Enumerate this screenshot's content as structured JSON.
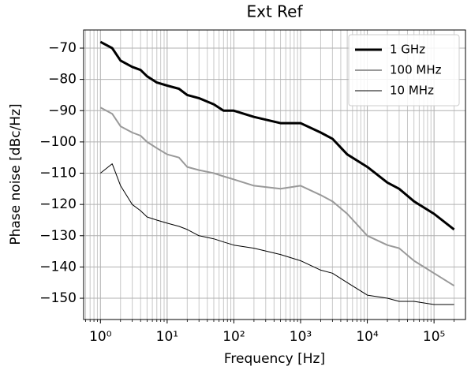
{
  "chart_data": {
    "type": "line",
    "title": "Ext Ref",
    "x_label": "Frequency [Hz]",
    "y_label": "Phase noise [dBc/Hz]",
    "x_scale": "log",
    "grid": true,
    "legend_position": "upper right",
    "x": [
      1,
      1.5,
      2,
      3,
      4,
      5,
      7,
      10,
      15,
      20,
      30,
      50,
      70,
      100,
      200,
      500,
      1000,
      2000,
      3000,
      5000,
      10000,
      20000,
      30000,
      50000,
      100000,
      200000
    ],
    "series": [
      {
        "name": "1 GHz",
        "color": "#000000",
        "linewidth": 3,
        "values": [
          -68,
          -70,
          -74,
          -76,
          -77,
          -79,
          -81,
          -82,
          -83,
          -85,
          -86,
          -88,
          -90,
          -90,
          -92,
          -94,
          -94,
          -97,
          -99,
          -104,
          -108,
          -113,
          -115,
          -119,
          -123,
          -128
        ]
      },
      {
        "name": "100 MHz",
        "color": "#999999",
        "linewidth": 2,
        "values": [
          -89,
          -91,
          -95,
          -97,
          -98,
          -100,
          -102,
          -104,
          -105,
          -108,
          -109,
          -110,
          -111,
          -112,
          -114,
          -115,
          -114,
          -117,
          -119,
          -123,
          -130,
          -133,
          -134,
          -138,
          -142,
          -146
        ]
      },
      {
        "name": "10 MHz",
        "color": "#000000",
        "linewidth": 1,
        "values": [
          -110,
          -107,
          -114,
          -120,
          -122,
          -124,
          -125,
          -126,
          -127,
          -128,
          -130,
          -131,
          -132,
          -133,
          -134,
          -136,
          -138,
          -141,
          -142,
          -145,
          -149,
          -150,
          -151,
          -151,
          -152,
          -152
        ]
      }
    ],
    "xlim": [
      0.56,
      296000
    ],
    "ylim": [
      -156.8,
      -64.2
    ],
    "xticks": [
      {
        "value": 1,
        "label": "10⁰"
      },
      {
        "value": 10,
        "label": "10¹"
      },
      {
        "value": 100,
        "label": "10²"
      },
      {
        "value": 1000,
        "label": "10³"
      },
      {
        "value": 10000,
        "label": "10⁴"
      },
      {
        "value": 100000,
        "label": "10⁵"
      }
    ],
    "xminor_ticks": [
      0.6,
      0.7,
      0.8,
      0.9,
      2,
      3,
      4,
      5,
      6,
      7,
      8,
      9,
      20,
      30,
      40,
      50,
      60,
      70,
      80,
      90,
      200,
      300,
      400,
      500,
      600,
      700,
      800,
      900,
      2000,
      3000,
      4000,
      5000,
      6000,
      7000,
      8000,
      9000,
      20000,
      30000,
      40000,
      50000,
      60000,
      70000,
      80000,
      90000,
      200000
    ],
    "yticks": [
      {
        "value": -150,
        "label": "−150"
      },
      {
        "value": -140,
        "label": "−140"
      },
      {
        "value": -130,
        "label": "−130"
      },
      {
        "value": -120,
        "label": "−120"
      },
      {
        "value": -110,
        "label": "−110"
      },
      {
        "value": -100,
        "label": "−100"
      },
      {
        "value": -90,
        "label": "−90"
      },
      {
        "value": -80,
        "label": "−80"
      },
      {
        "value": -70,
        "label": "−70"
      }
    ]
  }
}
